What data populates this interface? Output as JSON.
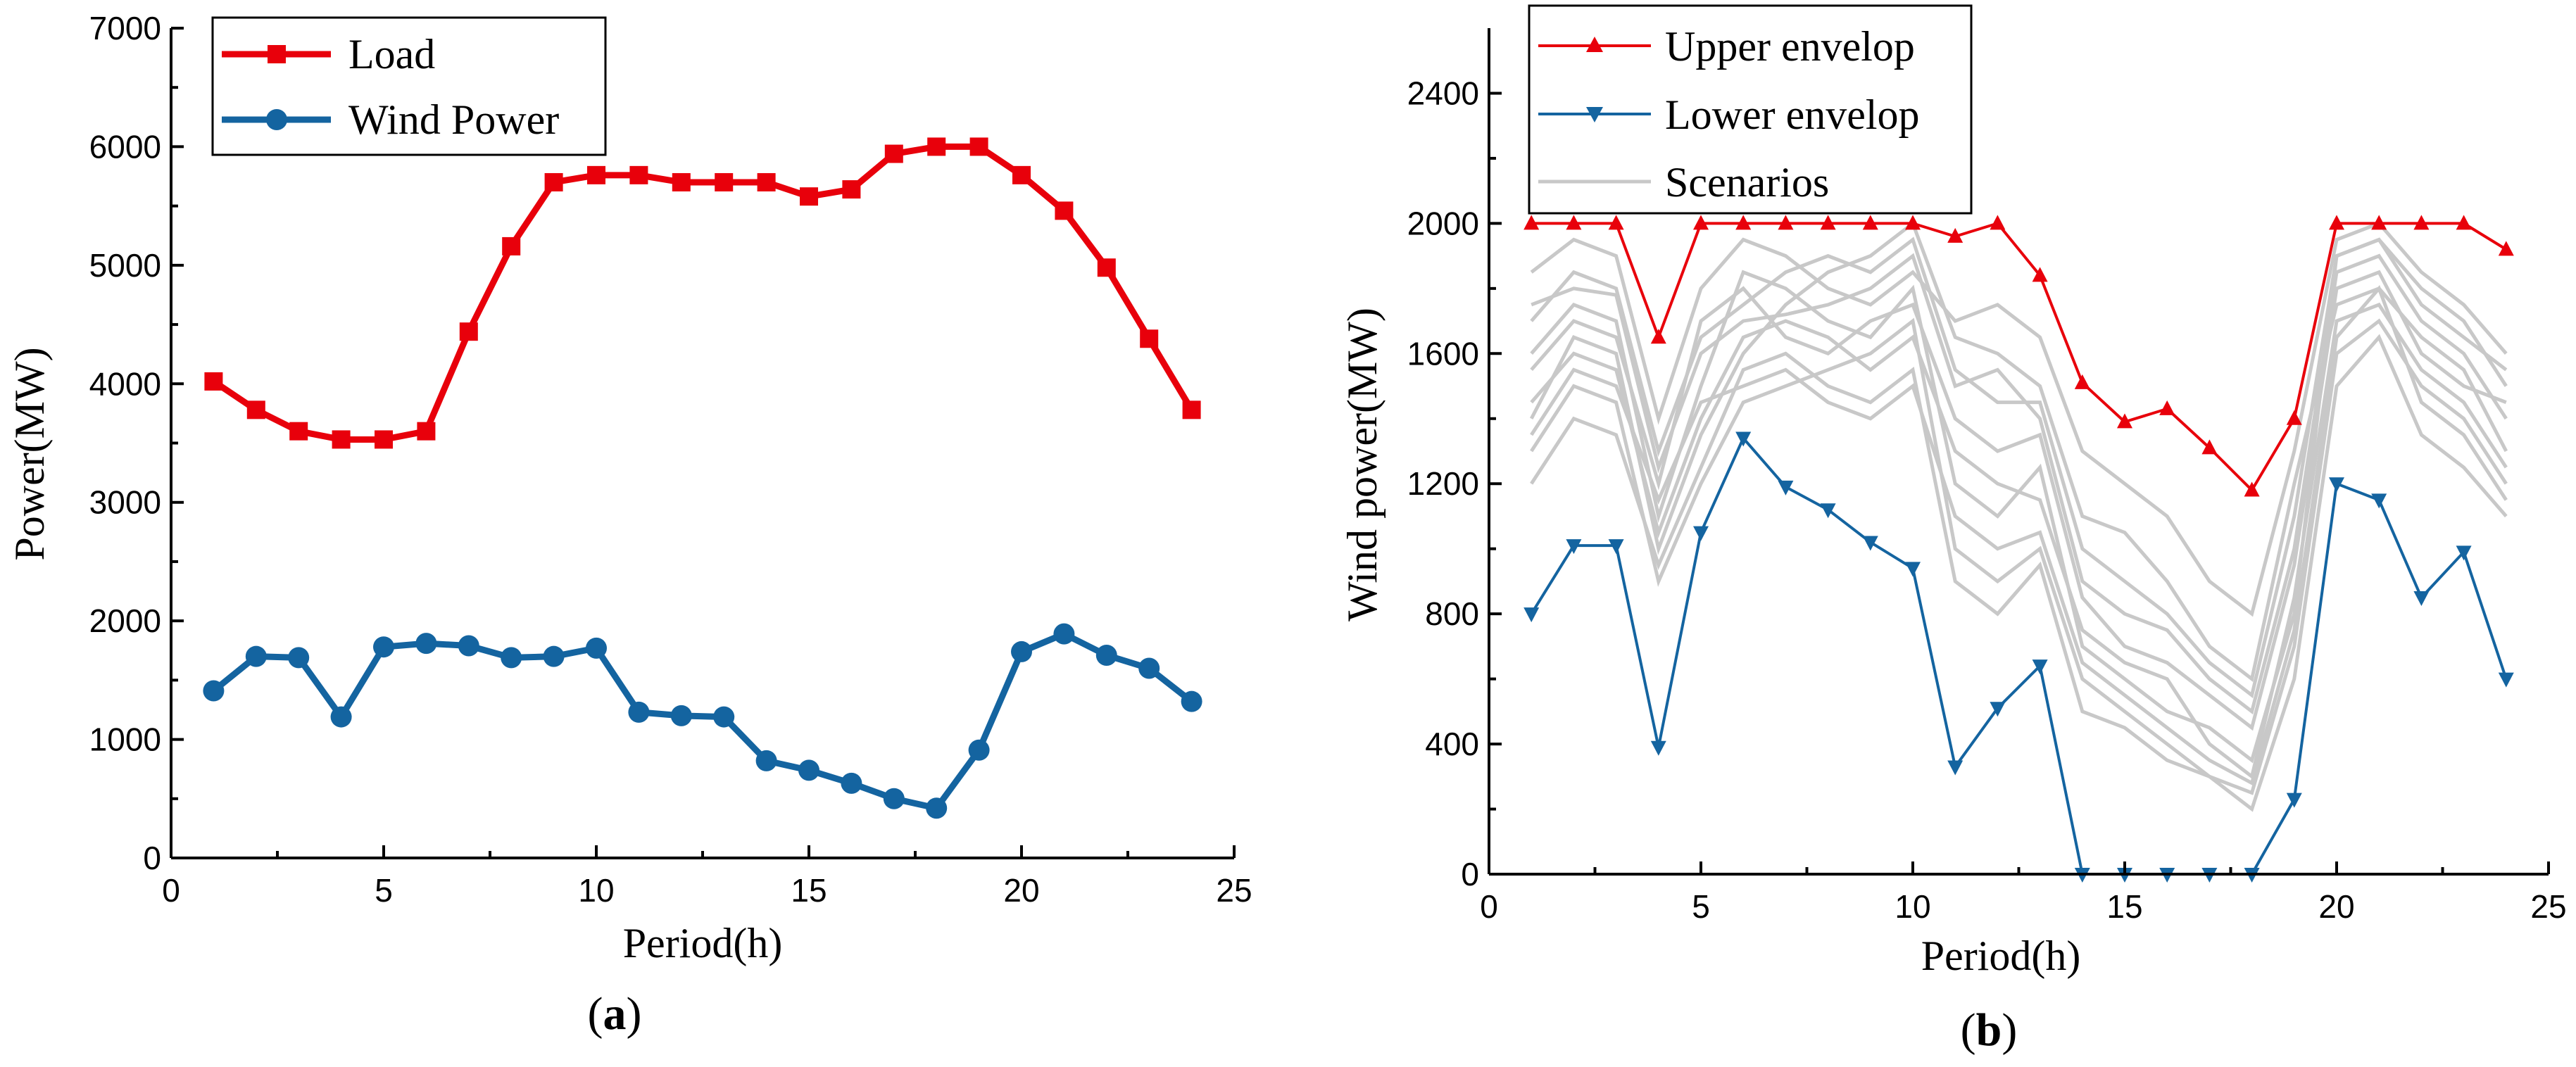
{
  "colors": {
    "load": "#e8000b",
    "wind": "#1464a0",
    "upper": "#e8000b",
    "lower": "#1464a0",
    "scenario": "#c8c8c8"
  },
  "chart_data": [
    {
      "type": "line",
      "panel_label": {
        "open": "(",
        "letter": "a",
        "close": ")"
      },
      "xlabel": "Period(h)",
      "ylabel": "Power(MW)",
      "xlim": [
        0,
        25
      ],
      "ylim": [
        0,
        7000
      ],
      "xticks": [
        0,
        5,
        10,
        15,
        20,
        25
      ],
      "yticks": [
        0,
        1000,
        2000,
        3000,
        4000,
        5000,
        6000,
        7000
      ],
      "legend_position": "top-left",
      "x": [
        1,
        2,
        3,
        4,
        5,
        6,
        7,
        8,
        9,
        10,
        11,
        12,
        13,
        14,
        15,
        16,
        17,
        18,
        19,
        20,
        21,
        22,
        23,
        24
      ],
      "series": [
        {
          "name": "Load",
          "marker": "square",
          "color": "#e8000b",
          "values": [
            4020,
            3780,
            3600,
            3530,
            3530,
            3600,
            4440,
            5160,
            5700,
            5760,
            5760,
            5700,
            5700,
            5700,
            5580,
            5640,
            5940,
            6000,
            6000,
            5760,
            5460,
            4980,
            4380,
            3780
          ]
        },
        {
          "name": "Wind Power",
          "marker": "circle",
          "color": "#1464a0",
          "values": [
            1410,
            1700,
            1690,
            1190,
            1780,
            1810,
            1790,
            1690,
            1700,
            1770,
            1230,
            1200,
            1190,
            820,
            740,
            630,
            500,
            420,
            910,
            1740,
            1890,
            1710,
            1600,
            1320
          ]
        }
      ]
    },
    {
      "type": "line",
      "panel_label": {
        "open": "(",
        "letter": "b",
        "close": ")"
      },
      "xlabel": "Period(h)",
      "ylabel": "Wind power(MW)",
      "xlim": [
        0,
        25
      ],
      "ylim": [
        0,
        2600
      ],
      "xticks": [
        0,
        5,
        10,
        15,
        20,
        25
      ],
      "yticks": [
        0,
        400,
        800,
        1200,
        1600,
        2000,
        2400
      ],
      "legend_position": "top-left",
      "x": [
        1,
        2,
        3,
        4,
        5,
        6,
        7,
        8,
        9,
        10,
        11,
        12,
        13,
        14,
        15,
        16,
        17,
        18,
        19,
        20,
        21,
        22,
        23,
        24
      ],
      "series": [
        {
          "name": "Upper envelop",
          "marker": "triangle-up",
          "color": "#e8000b",
          "values": [
            2000,
            2000,
            2000,
            1650,
            2000,
            2000,
            2000,
            2000,
            2000,
            2000,
            1960,
            2000,
            1840,
            1510,
            1390,
            1430,
            1310,
            1180,
            1400,
            2000,
            2000,
            2000,
            2000,
            1920
          ]
        },
        {
          "name": "Lower envelop",
          "marker": "triangle-down",
          "color": "#1464a0",
          "values": [
            800,
            1010,
            1010,
            390,
            1050,
            1340,
            1190,
            1120,
            1020,
            940,
            330,
            510,
            640,
            0,
            0,
            0,
            0,
            0,
            230,
            1200,
            1150,
            850,
            990,
            600
          ]
        },
        {
          "name": "Scenarios",
          "marker": "none",
          "color": "#c8c8c8",
          "scenarios": [
            [
              1750,
              1800,
              1780,
              1250,
              1600,
              1700,
              1720,
              1750,
              1800,
              1900,
              1500,
              1550,
              1400,
              900,
              800,
              750,
              600,
              500,
              1000,
              1850,
              1900,
              1700,
              1600,
              1400
            ],
            [
              1600,
              1750,
              1700,
              1100,
              1500,
              1850,
              1800,
              1700,
              1650,
              1800,
              1200,
              1100,
              1250,
              700,
              600,
              500,
              450,
              350,
              800,
              1900,
              1950,
              1800,
              1700,
              1500
            ],
            [
              1400,
              1650,
              1600,
              1000,
              1350,
              1600,
              1750,
              1850,
              1900,
              2000,
              1650,
              1600,
              1500,
              1100,
              1050,
              900,
              700,
              600,
              1200,
              1750,
              1800,
              1650,
              1550,
              1300
            ],
            [
              1300,
              1500,
              1450,
              900,
              1200,
              1450,
              1500,
              1550,
              1600,
              1700,
              1000,
              900,
              1000,
              600,
              500,
              400,
              300,
              250,
              700,
              1600,
              1700,
              1500,
              1400,
              1200
            ],
            [
              1850,
              1950,
              1900,
              1400,
              1800,
              1950,
              1900,
              1800,
              1750,
              1850,
              1700,
              1750,
              1650,
              1300,
              1200,
              1100,
              900,
              800,
              1300,
              1950,
              2000,
              1850,
              1750,
              1600
            ],
            [
              1200,
              1400,
              1350,
              950,
              1250,
              1550,
              1600,
              1500,
              1450,
              1550,
              900,
              800,
              950,
              500,
              450,
              350,
              300,
              200,
              600,
              1500,
              1650,
              1350,
              1250,
              1100
            ],
            [
              1550,
              1700,
              1650,
              1200,
              1700,
              1800,
              1650,
              1600,
              1700,
              1750,
              1400,
              1300,
              1350,
              850,
              700,
              650,
              550,
              450,
              950,
              1800,
              1850,
              1600,
              1500,
              1450
            ],
            [
              1450,
              1600,
              1550,
              1050,
              1400,
              1650,
              1700,
              1650,
              1550,
              1650,
              1300,
              1200,
              1150,
              750,
              650,
              600,
              400,
              300,
              850,
              1700,
              1750,
              1550,
              1450,
              1250
            ],
            [
              1700,
              1850,
              1800,
              1300,
              1650,
              1750,
              1850,
              1900,
              1850,
              1950,
              1550,
              1450,
              1450,
              1000,
              900,
              800,
              650,
              550,
              1100,
              1900,
              1950,
              1750,
              1650,
              1550
            ],
            [
              1350,
              1550,
              1500,
              1150,
              1450,
              1500,
              1550,
              1450,
              1400,
              1500,
              1100,
              1000,
              1050,
              650,
              550,
              450,
              350,
              280,
              750,
              1650,
              1800,
              1450,
              1350,
              1150
            ]
          ]
        }
      ]
    }
  ]
}
